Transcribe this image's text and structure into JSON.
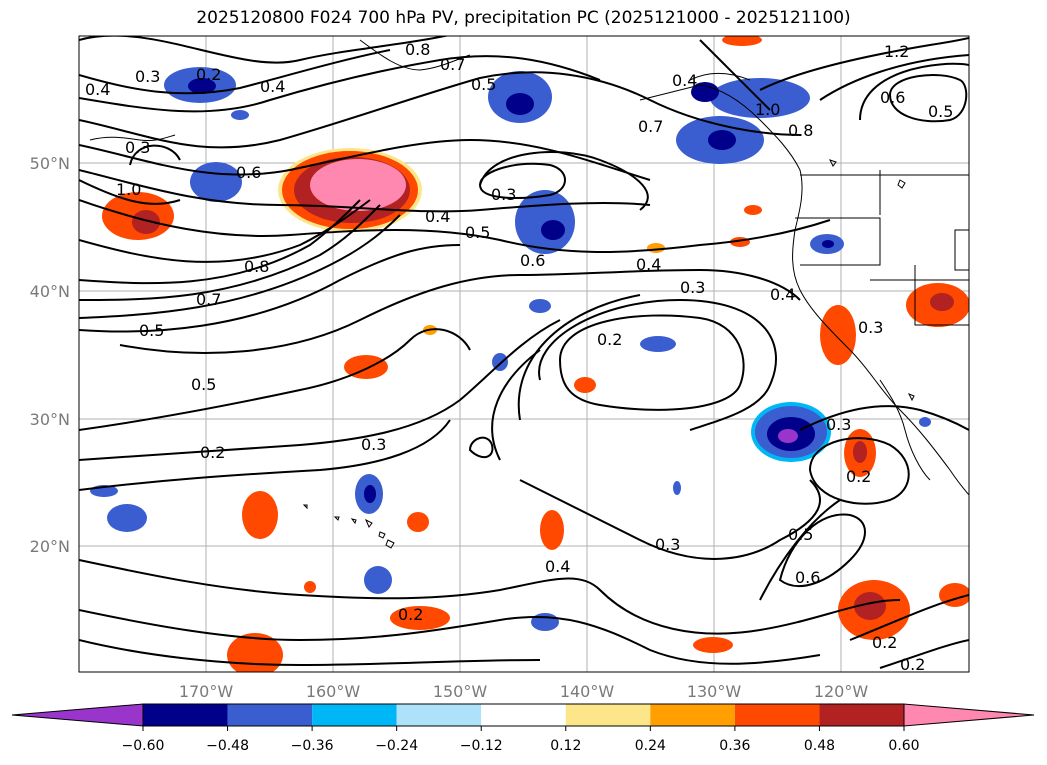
{
  "title": "2025120800 F024 700 hPa PV, precipitation PC (2025121000 - 2025121100)",
  "lon_labels": [
    "170°W",
    "160°W",
    "150°W",
    "140°W",
    "130°W",
    "120°W"
  ],
  "lat_labels": [
    "50°N",
    "40°N",
    "30°N",
    "20°N"
  ],
  "contour_labels": [
    "0.2",
    "0.3",
    "0.4",
    "0.8",
    "0.7",
    "0.5",
    "0.4",
    "1.2",
    "0.6",
    "0.5",
    "1.0",
    "0.8",
    "0.7",
    "0.6",
    "0.3",
    "1.0",
    "0.4",
    "0.5",
    "0.6",
    "0.4",
    "0.8",
    "0.3",
    "0.7",
    "0.5",
    "0.4",
    "0.2",
    "0.3",
    "0.5",
    "0.3",
    "0.2",
    "0.3",
    "0.2",
    "0.3",
    "0.5",
    "0.6",
    "0.4",
    "0.2",
    "0.2",
    "0.2"
  ],
  "colorbar": {
    "ticks": [
      "−0.60",
      "−0.48",
      "−0.36",
      "−0.24",
      "−0.12",
      "0.12",
      "0.24",
      "0.36",
      "0.48",
      "0.60"
    ],
    "colors": [
      "#9a35cc",
      "#00008b",
      "#3a5ed0",
      "#00b7f5",
      "#aee2fa",
      "#ffffff",
      "#fde68a",
      "#ff9f00",
      "#ff4800",
      "#b22222",
      "#ff88b0"
    ]
  }
}
